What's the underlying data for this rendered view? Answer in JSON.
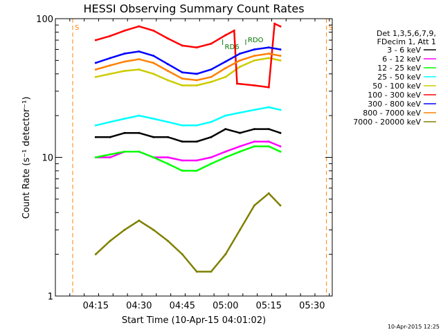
{
  "chart_data": {
    "type": "line",
    "title": "HESSI Observing Summary Count Rates",
    "xlabel": "Start Time (10-Apr-15 04:01:02)",
    "ylabel": "Count Rate (s⁻¹ detector⁻¹)",
    "y_scale": "log",
    "ylim": [
      1,
      100
    ],
    "y_ticks": [
      1,
      10,
      100
    ],
    "y_tick_labels": [
      "1",
      "10",
      "100"
    ],
    "xlim": [
      "04:01",
      "05:37"
    ],
    "x_ticks": [
      "04:15",
      "04:30",
      "04:45",
      "05:00",
      "05:15",
      "05:30"
    ],
    "legend": {
      "header": [
        "Det 1,3,5,6,7,9,",
        "FDecim 1, Att 1"
      ],
      "placement": "right"
    },
    "series": [
      {
        "name": "3 - 6 keV",
        "color": "#000000",
        "x": [
          "04:15",
          "04:20",
          "04:25",
          "04:30",
          "04:35",
          "04:40",
          "04:45",
          "04:50",
          "04:55",
          "05:00",
          "05:05",
          "05:10",
          "05:15",
          "05:19"
        ],
        "y": [
          14,
          14,
          15,
          15,
          14,
          14,
          13,
          13,
          14,
          16,
          15,
          16,
          16,
          15
        ]
      },
      {
        "name": "6 - 12 keV",
        "color": "#ff00ff",
        "x": [
          "04:15",
          "04:20",
          "04:25",
          "04:30",
          "04:35",
          "04:40",
          "04:45",
          "04:50",
          "04:55",
          "05:00",
          "05:05",
          "05:10",
          "05:15",
          "05:19"
        ],
        "y": [
          10,
          10,
          11,
          11,
          10,
          10,
          9.5,
          9.5,
          10,
          11,
          12,
          13,
          13,
          12
        ]
      },
      {
        "name": "12 - 25 keV",
        "color": "#00ff00",
        "x": [
          "04:15",
          "04:20",
          "04:25",
          "04:30",
          "04:35",
          "04:40",
          "04:45",
          "04:50",
          "04:55",
          "05:00",
          "05:05",
          "05:10",
          "05:15",
          "05:19"
        ],
        "y": [
          10,
          10.5,
          11,
          11,
          10,
          9,
          8,
          8,
          9,
          10,
          11,
          12,
          12,
          11
        ]
      },
      {
        "name": "25 - 50 keV",
        "color": "#00ffff",
        "x": [
          "04:15",
          "04:20",
          "04:25",
          "04:30",
          "04:35",
          "04:40",
          "04:45",
          "04:50",
          "04:55",
          "05:00",
          "05:05",
          "05:10",
          "05:15",
          "05:19"
        ],
        "y": [
          17,
          18,
          19,
          20,
          19,
          18,
          17,
          17,
          18,
          20,
          21,
          22,
          23,
          22
        ]
      },
      {
        "name": "50 - 100 keV",
        "color": "#cccc00",
        "x": [
          "04:15",
          "04:20",
          "04:25",
          "04:30",
          "04:35",
          "04:40",
          "04:45",
          "04:50",
          "04:55",
          "05:00",
          "05:05",
          "05:10",
          "05:15",
          "05:19"
        ],
        "y": [
          38,
          40,
          42,
          43,
          40,
          36,
          33,
          33,
          35,
          38,
          45,
          50,
          52,
          50
        ]
      },
      {
        "name": "100 - 300 keV",
        "color": "#ff0000",
        "x": [
          "04:15",
          "04:20",
          "04:25",
          "04:30",
          "04:35",
          "04:40",
          "04:45",
          "04:50",
          "04:55",
          "05:00",
          "05:03",
          "05:04",
          "05:10",
          "05:15",
          "05:17",
          "05:19"
        ],
        "y": [
          70,
          75,
          82,
          88,
          82,
          72,
          64,
          62,
          66,
          76,
          82,
          34,
          33,
          32,
          92,
          88
        ]
      },
      {
        "name": "300 - 800 keV",
        "color": "#0000ff",
        "x": [
          "04:15",
          "04:20",
          "04:25",
          "04:30",
          "04:35",
          "04:40",
          "04:45",
          "04:50",
          "04:55",
          "05:00",
          "05:05",
          "05:10",
          "05:15",
          "05:19"
        ],
        "y": [
          48,
          52,
          56,
          58,
          54,
          47,
          41,
          40,
          43,
          49,
          56,
          60,
          62,
          60
        ]
      },
      {
        "name": "800 - 7000 keV",
        "color": "#ff8000",
        "x": [
          "04:15",
          "04:20",
          "04:25",
          "04:30",
          "04:35",
          "04:40",
          "04:45",
          "04:50",
          "04:55",
          "05:00",
          "05:05",
          "05:10",
          "05:15",
          "05:19"
        ],
        "y": [
          43,
          46,
          49,
          51,
          48,
          42,
          37,
          36,
          38,
          44,
          50,
          54,
          56,
          54
        ]
      },
      {
        "name": "7000 - 20000 keV",
        "color": "#808000",
        "x": [
          "04:15",
          "04:20",
          "04:25",
          "04:30",
          "04:35",
          "04:40",
          "04:45",
          "04:50",
          "04:55",
          "05:00",
          "05:05",
          "05:10",
          "05:15",
          "05:19"
        ],
        "y": [
          2,
          2.5,
          3,
          3.5,
          3,
          2.5,
          2,
          1.5,
          1.5,
          2,
          3,
          4.5,
          5.5,
          4.5
        ]
      }
    ],
    "markers": [
      {
        "label": "S",
        "color": "#ff8000",
        "x": [
          "04:07",
          "05:35"
        ],
        "style": "dashed"
      },
      {
        "label": "RDO",
        "color": "#007700",
        "x": [
          "05:07"
        ]
      },
      {
        "label": "RD6",
        "color": "#007700",
        "x": [
          "04:59"
        ]
      }
    ],
    "footer_date": "10-Apr-2015 12:25"
  }
}
